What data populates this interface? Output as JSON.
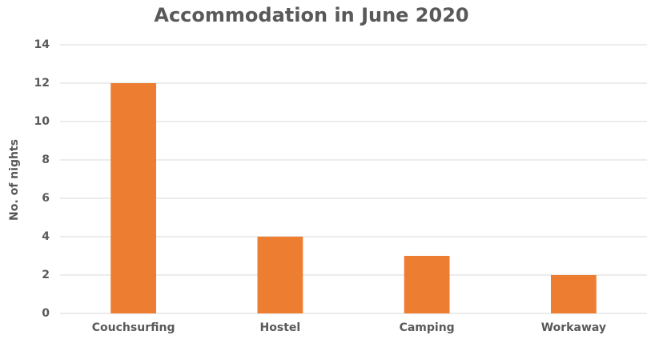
{
  "chart_data": {
    "type": "bar",
    "title": "Accommodation in June 2020",
    "y_label": "No. of nights",
    "categories": [
      "Couchsurfing",
      "Hostel",
      "Camping",
      "Workaway"
    ],
    "values": [
      12,
      4,
      3,
      2
    ],
    "color": "#ed7d31",
    "ylim": [
      0,
      14
    ],
    "yticks": [
      0,
      2,
      4,
      6,
      8,
      10,
      12,
      14
    ],
    "grid": true
  }
}
